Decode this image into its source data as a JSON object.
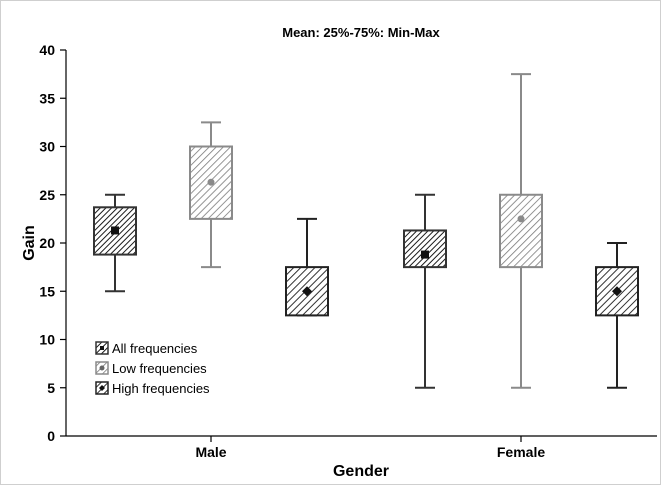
{
  "chart_data": {
    "type": "box",
    "title": "Mean: 25%-75%: Min-Max",
    "xlabel": "Gender",
    "ylabel": "Gain",
    "ylim": [
      0,
      40
    ],
    "yticks": [
      0,
      5,
      10,
      15,
      20,
      25,
      30,
      35,
      40
    ],
    "grid": false,
    "legend_position": "bottom-left",
    "categories": [
      "Male",
      "Female"
    ],
    "series": [
      {
        "name": "All frequencies",
        "color": "#333333",
        "hatch": "dense-diagonal",
        "values": [
          {
            "category": "Male",
            "mean": 21.3,
            "q1": 18.8,
            "q3": 23.7,
            "min": 15.0,
            "max": 25.0
          },
          {
            "category": "Female",
            "mean": 18.8,
            "q1": 17.5,
            "q3": 21.3,
            "min": 5.0,
            "max": 25.0
          }
        ]
      },
      {
        "name": "Low frequencies",
        "color": "#8a8a8a",
        "hatch": "diagonal",
        "values": [
          {
            "category": "Male",
            "mean": 26.3,
            "q1": 22.5,
            "q3": 30.0,
            "min": 17.5,
            "max": 32.5
          },
          {
            "category": "Female",
            "mean": 22.5,
            "q1": 17.5,
            "q3": 25.0,
            "min": 5.0,
            "max": 37.5
          }
        ]
      },
      {
        "name": "High frequencies",
        "color": "#222222",
        "hatch": "diagonal",
        "values": [
          {
            "category": "Male",
            "mean": 15.0,
            "q1": 12.5,
            "q3": 17.5,
            "min": 12.5,
            "max": 22.5
          },
          {
            "category": "Female",
            "mean": 15.0,
            "q1": 12.5,
            "q3": 17.5,
            "min": 5.0,
            "max": 20.0
          }
        ]
      }
    ]
  }
}
